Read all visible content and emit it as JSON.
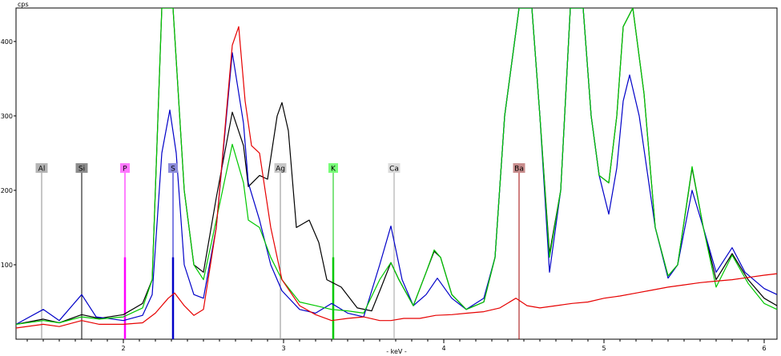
{
  "chart_data": {
    "type": "line",
    "y_unit_label": "cps",
    "x_unit_label": "- keV -",
    "xlim": [
      1.33,
      6.08
    ],
    "ylim": [
      0,
      445
    ],
    "grid": false,
    "x_ticks": [
      "2",
      "3",
      "4",
      "5",
      "6"
    ],
    "x_tick_values": [
      2,
      3,
      4,
      5,
      6
    ],
    "y_ticks": [
      "100",
      "200",
      "300",
      "400"
    ],
    "y_tick_values": [
      100,
      200,
      300,
      400
    ],
    "series": [
      {
        "color": "#000000",
        "points": [
          [
            1.33,
            20
          ],
          [
            1.5,
            27
          ],
          [
            1.6,
            22
          ],
          [
            1.74,
            33
          ],
          [
            1.85,
            28
          ],
          [
            2.0,
            33
          ],
          [
            2.12,
            48
          ],
          [
            2.18,
            80
          ],
          [
            2.24,
            445
          ],
          [
            2.31,
            445
          ],
          [
            2.38,
            200
          ],
          [
            2.44,
            100
          ],
          [
            2.5,
            90
          ],
          [
            2.58,
            190
          ],
          [
            2.68,
            305
          ],
          [
            2.75,
            260
          ],
          [
            2.78,
            205
          ],
          [
            2.85,
            220
          ],
          [
            2.9,
            215
          ],
          [
            2.96,
            300
          ],
          [
            2.99,
            318
          ],
          [
            3.03,
            280
          ],
          [
            3.08,
            150
          ],
          [
            3.16,
            160
          ],
          [
            3.22,
            130
          ],
          [
            3.27,
            80
          ],
          [
            3.36,
            70
          ],
          [
            3.46,
            42
          ],
          [
            3.55,
            38
          ],
          [
            3.61,
            70
          ],
          [
            3.67,
            103
          ],
          [
            3.72,
            80
          ],
          [
            3.81,
            45
          ],
          [
            3.89,
            90
          ],
          [
            3.94,
            118
          ],
          [
            3.98,
            110
          ],
          [
            4.05,
            60
          ],
          [
            4.14,
            40
          ],
          [
            4.25,
            50
          ],
          [
            4.32,
            110
          ],
          [
            4.38,
            300
          ],
          [
            4.47,
            445
          ],
          [
            4.55,
            445
          ],
          [
            4.6,
            300
          ],
          [
            4.66,
            115
          ],
          [
            4.73,
            200
          ],
          [
            4.79,
            445
          ],
          [
            4.87,
            445
          ],
          [
            4.92,
            300
          ],
          [
            4.97,
            220
          ],
          [
            5.03,
            210
          ],
          [
            5.08,
            300
          ],
          [
            5.12,
            420
          ],
          [
            5.18,
            445
          ],
          [
            5.25,
            330
          ],
          [
            5.32,
            150
          ],
          [
            5.4,
            85
          ],
          [
            5.46,
            100
          ],
          [
            5.55,
            230
          ],
          [
            5.62,
            150
          ],
          [
            5.7,
            80
          ],
          [
            5.8,
            115
          ],
          [
            5.9,
            80
          ],
          [
            6.0,
            55
          ],
          [
            6.08,
            45
          ]
        ]
      },
      {
        "color": "#0000c8",
        "points": [
          [
            1.33,
            20
          ],
          [
            1.5,
            40
          ],
          [
            1.6,
            25
          ],
          [
            1.74,
            60
          ],
          [
            1.83,
            30
          ],
          [
            2.0,
            25
          ],
          [
            2.12,
            32
          ],
          [
            2.18,
            60
          ],
          [
            2.24,
            250
          ],
          [
            2.29,
            308
          ],
          [
            2.33,
            250
          ],
          [
            2.38,
            100
          ],
          [
            2.44,
            60
          ],
          [
            2.5,
            55
          ],
          [
            2.58,
            150
          ],
          [
            2.68,
            385
          ],
          [
            2.75,
            290
          ],
          [
            2.78,
            210
          ],
          [
            2.85,
            160
          ],
          [
            2.92,
            100
          ],
          [
            2.99,
            65
          ],
          [
            3.1,
            40
          ],
          [
            3.2,
            35
          ],
          [
            3.3,
            48
          ],
          [
            3.4,
            35
          ],
          [
            3.5,
            30
          ],
          [
            3.6,
            100
          ],
          [
            3.67,
            152
          ],
          [
            3.74,
            80
          ],
          [
            3.81,
            45
          ],
          [
            3.89,
            60
          ],
          [
            3.96,
            82
          ],
          [
            4.05,
            55
          ],
          [
            4.14,
            40
          ],
          [
            4.25,
            55
          ],
          [
            4.32,
            110
          ],
          [
            4.38,
            300
          ],
          [
            4.47,
            445
          ],
          [
            4.55,
            445
          ],
          [
            4.6,
            300
          ],
          [
            4.66,
            90
          ],
          [
            4.73,
            200
          ],
          [
            4.79,
            445
          ],
          [
            4.87,
            445
          ],
          [
            4.92,
            300
          ],
          [
            4.97,
            220
          ],
          [
            5.03,
            168
          ],
          [
            5.08,
            230
          ],
          [
            5.12,
            320
          ],
          [
            5.16,
            355
          ],
          [
            5.22,
            300
          ],
          [
            5.32,
            150
          ],
          [
            5.4,
            82
          ],
          [
            5.46,
            100
          ],
          [
            5.55,
            200
          ],
          [
            5.62,
            150
          ],
          [
            5.7,
            90
          ],
          [
            5.8,
            123
          ],
          [
            5.88,
            90
          ],
          [
            6.0,
            68
          ],
          [
            6.08,
            60
          ]
        ]
      },
      {
        "color": "#00c800",
        "points": [
          [
            1.33,
            20
          ],
          [
            1.5,
            25
          ],
          [
            1.6,
            22
          ],
          [
            1.74,
            30
          ],
          [
            1.85,
            27
          ],
          [
            2.0,
            30
          ],
          [
            2.12,
            42
          ],
          [
            2.18,
            80
          ],
          [
            2.24,
            445
          ],
          [
            2.31,
            445
          ],
          [
            2.38,
            200
          ],
          [
            2.44,
            100
          ],
          [
            2.5,
            80
          ],
          [
            2.58,
            160
          ],
          [
            2.68,
            262
          ],
          [
            2.75,
            210
          ],
          [
            2.78,
            160
          ],
          [
            2.85,
            150
          ],
          [
            2.92,
            110
          ],
          [
            2.99,
            80
          ],
          [
            3.1,
            50
          ],
          [
            3.2,
            45
          ],
          [
            3.3,
            40
          ],
          [
            3.4,
            38
          ],
          [
            3.5,
            35
          ],
          [
            3.6,
            80
          ],
          [
            3.67,
            103
          ],
          [
            3.72,
            80
          ],
          [
            3.81,
            45
          ],
          [
            3.89,
            90
          ],
          [
            3.94,
            120
          ],
          [
            3.98,
            110
          ],
          [
            4.05,
            60
          ],
          [
            4.14,
            40
          ],
          [
            4.25,
            50
          ],
          [
            4.32,
            110
          ],
          [
            4.38,
            300
          ],
          [
            4.47,
            445
          ],
          [
            4.55,
            445
          ],
          [
            4.6,
            300
          ],
          [
            4.66,
            110
          ],
          [
            4.73,
            200
          ],
          [
            4.79,
            445
          ],
          [
            4.87,
            445
          ],
          [
            4.92,
            300
          ],
          [
            4.97,
            220
          ],
          [
            5.03,
            210
          ],
          [
            5.08,
            300
          ],
          [
            5.12,
            420
          ],
          [
            5.18,
            445
          ],
          [
            5.25,
            330
          ],
          [
            5.32,
            150
          ],
          [
            5.4,
            85
          ],
          [
            5.46,
            100
          ],
          [
            5.55,
            232
          ],
          [
            5.62,
            150
          ],
          [
            5.7,
            70
          ],
          [
            5.8,
            113
          ],
          [
            5.9,
            75
          ],
          [
            6.0,
            48
          ],
          [
            6.08,
            40
          ]
        ]
      },
      {
        "color": "#e60000",
        "points": [
          [
            1.33,
            15
          ],
          [
            1.5,
            20
          ],
          [
            1.6,
            17
          ],
          [
            1.74,
            25
          ],
          [
            1.85,
            20
          ],
          [
            2.0,
            20
          ],
          [
            2.12,
            22
          ],
          [
            2.2,
            35
          ],
          [
            2.28,
            55
          ],
          [
            2.32,
            62
          ],
          [
            2.38,
            45
          ],
          [
            2.44,
            32
          ],
          [
            2.5,
            40
          ],
          [
            2.58,
            150
          ],
          [
            2.68,
            395
          ],
          [
            2.72,
            420
          ],
          [
            2.76,
            320
          ],
          [
            2.8,
            260
          ],
          [
            2.85,
            250
          ],
          [
            2.92,
            150
          ],
          [
            2.99,
            80
          ],
          [
            3.1,
            45
          ],
          [
            3.2,
            33
          ],
          [
            3.3,
            25
          ],
          [
            3.4,
            28
          ],
          [
            3.5,
            30
          ],
          [
            3.6,
            25
          ],
          [
            3.67,
            25
          ],
          [
            3.75,
            28
          ],
          [
            3.85,
            28
          ],
          [
            3.95,
            32
          ],
          [
            4.05,
            33
          ],
          [
            4.15,
            35
          ],
          [
            4.25,
            37
          ],
          [
            4.35,
            42
          ],
          [
            4.45,
            55
          ],
          [
            4.52,
            45
          ],
          [
            4.6,
            42
          ],
          [
            4.7,
            45
          ],
          [
            4.8,
            48
          ],
          [
            4.9,
            50
          ],
          [
            5.0,
            55
          ],
          [
            5.1,
            58
          ],
          [
            5.2,
            62
          ],
          [
            5.3,
            66
          ],
          [
            5.4,
            70
          ],
          [
            5.5,
            73
          ],
          [
            5.6,
            76
          ],
          [
            5.7,
            78
          ],
          [
            5.8,
            80
          ],
          [
            5.9,
            83
          ],
          [
            6.0,
            86
          ],
          [
            6.08,
            88
          ]
        ]
      }
    ],
    "element_markers": [
      {
        "label": "Al",
        "x": 1.49,
        "color": "#b4b4b4",
        "line": "#8c8c8c",
        "bar": 0
      },
      {
        "label": "Si",
        "x": 1.74,
        "color": "#8c8c8c",
        "line": "#000000",
        "bar": 0
      },
      {
        "label": "P",
        "x": 2.01,
        "color": "#ff78ff",
        "line": "#ff00ff",
        "bar": 110
      },
      {
        "label": "S",
        "x": 2.31,
        "color": "#8c8cdc",
        "line": "#0000c8",
        "bar": 110
      },
      {
        "label": "Ag",
        "x": 2.98,
        "color": "#c8c8c8",
        "line": "#8c8c8c",
        "bar": 0
      },
      {
        "label": "K",
        "x": 3.31,
        "color": "#78ff78",
        "line": "#00c800",
        "bar": 110
      },
      {
        "label": "Ca",
        "x": 3.69,
        "color": "#dcdcdc",
        "line": "#a0a0a0",
        "bar": 0
      },
      {
        "label": "Ba",
        "x": 4.47,
        "color": "#c88c8c",
        "line": "#a00000",
        "bar": 0
      }
    ],
    "marker_label_y": 230
  }
}
